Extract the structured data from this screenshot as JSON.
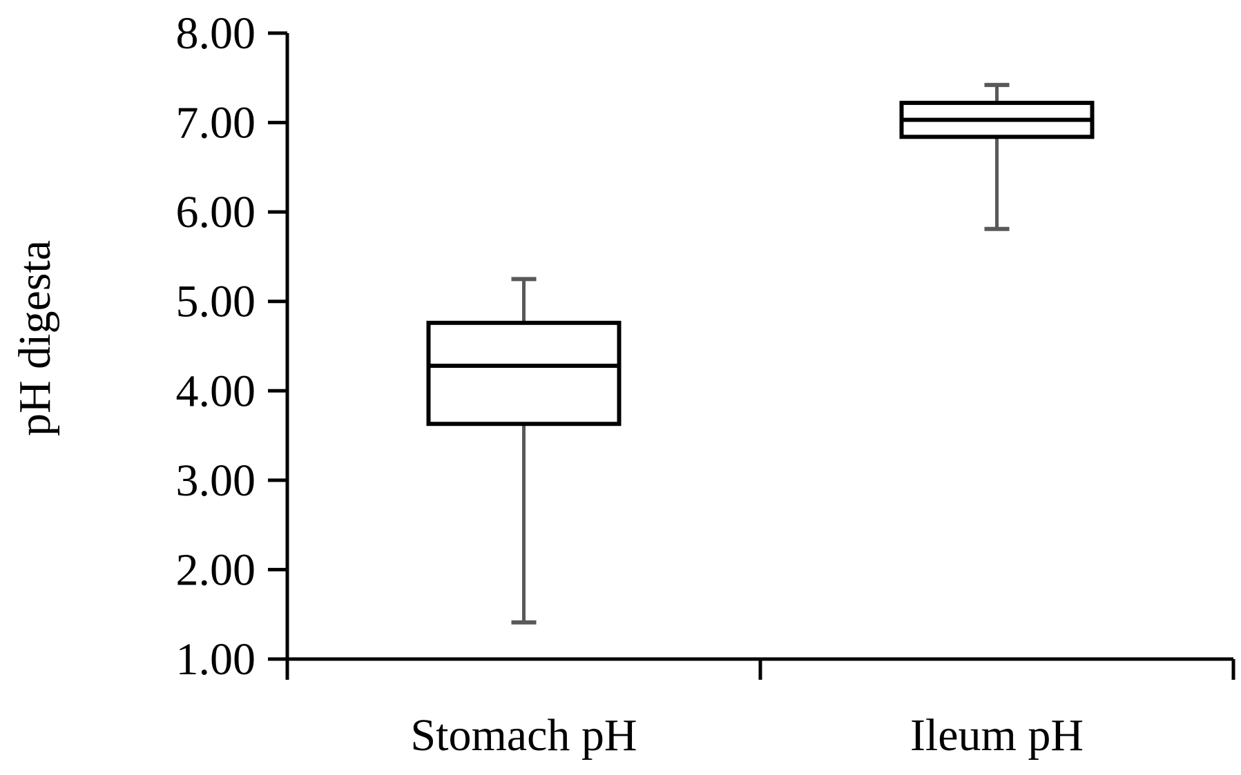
{
  "chart_data": {
    "type": "box",
    "title": "",
    "xlabel": "",
    "ylabel": "pH digesta",
    "ylim": [
      1.0,
      8.0
    ],
    "yticks": [
      1.0,
      2.0,
      3.0,
      4.0,
      5.0,
      6.0,
      7.0,
      8.0
    ],
    "ytick_labels": [
      "1.00",
      "2.00",
      "3.00",
      "4.00",
      "5.00",
      "6.00",
      "7.00",
      "8.00"
    ],
    "categories": [
      "Stomach pH",
      "Ileum pH"
    ],
    "boxes": [
      {
        "category": "Stomach pH",
        "min": 1.41,
        "q1": 3.63,
        "median": 4.28,
        "q3": 4.76,
        "max": 5.25
      },
      {
        "category": "Ileum pH",
        "min": 5.81,
        "q1": 6.84,
        "median": 7.03,
        "q3": 7.22,
        "max": 7.42
      }
    ],
    "grid": false,
    "colors": {
      "axis": "#000000",
      "box": "#000000",
      "whisker": "#595959"
    }
  }
}
